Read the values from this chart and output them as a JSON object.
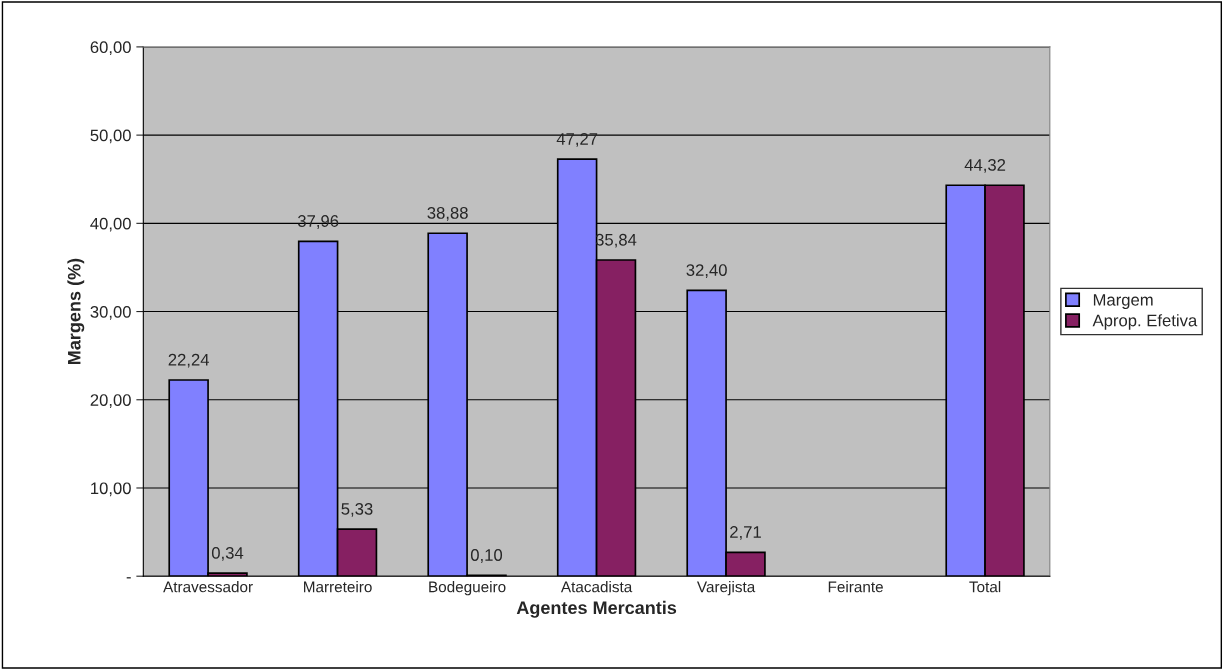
{
  "chart_data": {
    "type": "bar",
    "xlabel": "Agentes Mercantis",
    "ylabel": "Margens (%)",
    "categories": [
      "Atravessador",
      "Marreteiro",
      "Bodegueiro",
      "Atacadista",
      "Varejista",
      "Feirante",
      "Total"
    ],
    "series": [
      {
        "name": "Margem",
        "color": "#8080ff",
        "values": [
          22.24,
          37.96,
          38.88,
          47.27,
          32.4,
          null,
          44.32
        ],
        "value_labels": [
          "22,24",
          "37,96",
          "38,88",
          "47,27",
          "32,40",
          null,
          "44,32"
        ]
      },
      {
        "name": "Aprop. Efetiva",
        "color": "#862062",
        "values": [
          0.34,
          5.33,
          0.1,
          35.84,
          2.71,
          null,
          44.32
        ],
        "value_labels": [
          "0,34",
          "5,33",
          "0,10",
          "35,84",
          "2,71",
          null,
          null
        ]
      }
    ],
    "ylim": [
      0,
      60
    ],
    "yticks": [
      {
        "value": 0,
        "label": "-"
      },
      {
        "value": 10,
        "label": "10,00"
      },
      {
        "value": 20,
        "label": "20,00"
      },
      {
        "value": 30,
        "label": "30,00"
      },
      {
        "value": 40,
        "label": "40,00"
      },
      {
        "value": 50,
        "label": "50,00"
      },
      {
        "value": 60,
        "label": "60,00"
      }
    ],
    "grid": "y",
    "legend": "right"
  }
}
